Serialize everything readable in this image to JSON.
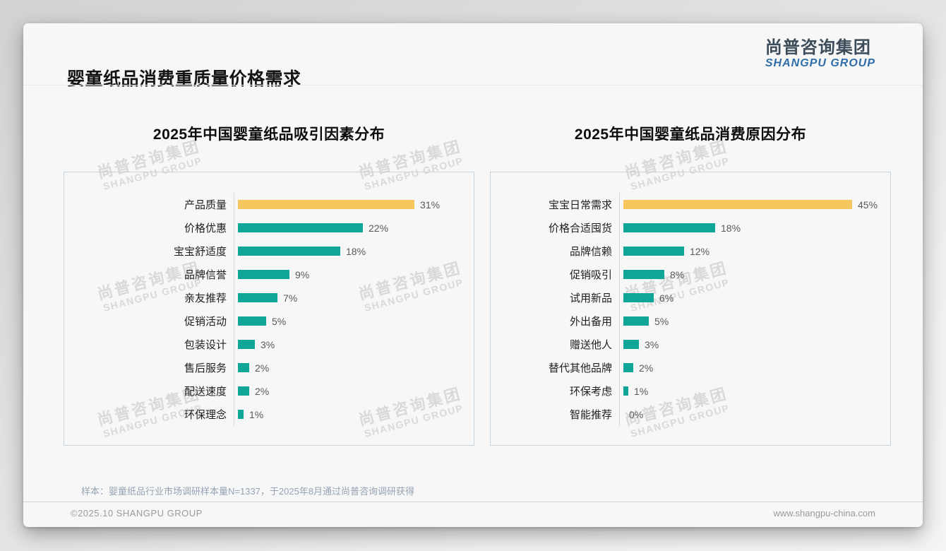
{
  "page": {
    "title": "婴童纸品消费重质量价格需求",
    "note": "样本：婴童纸品行业市场调研样本量N=1337，于2025年8月通过尚普咨询调研获得",
    "footer_left": "©2025.10 SHANGPU GROUP",
    "footer_right": "www.shangpu-china.com"
  },
  "logo": {
    "cn": "尚普咨询集团",
    "en": "SHANGPU GROUP"
  },
  "watermark": {
    "line1": "尚普咨询集团",
    "line2": "SHANGPU GROUP"
  },
  "colors": {
    "highlight_bar": "#F6C75E",
    "default_bar": "#0FA69A",
    "logo_cn": "#3D4C5A",
    "logo_en": "#2F6DA8",
    "panel_border": "#C6D4DF"
  },
  "chart_data": [
    {
      "type": "bar",
      "orientation": "horizontal",
      "title": "2025年中国婴童纸品吸引因素分布",
      "categories": [
        "产品质量",
        "价格优惠",
        "宝宝舒适度",
        "品牌信誉",
        "亲友推荐",
        "促销活动",
        "包装设计",
        "售后服务",
        "配送速度",
        "环保理念"
      ],
      "values": [
        31,
        22,
        18,
        9,
        7,
        5,
        3,
        2,
        2,
        1
      ],
      "value_labels": [
        "31%",
        "22%",
        "18%",
        "9%",
        "7%",
        "5%",
        "3%",
        "2%",
        "2%",
        "1%"
      ],
      "highlight_index": 0,
      "highlight_color": "#F6C75E",
      "bar_color": "#0FA69A",
      "grid": false,
      "legend": false
    },
    {
      "type": "bar",
      "orientation": "horizontal",
      "title": "2025年中国婴童纸品消费原因分布",
      "categories": [
        "宝宝日常需求",
        "价格合适囤货",
        "品牌信赖",
        "促销吸引",
        "试用新品",
        "外出备用",
        "赠送他人",
        "替代其他品牌",
        "环保考虑",
        "智能推荐"
      ],
      "values": [
        45,
        18,
        12,
        8,
        6,
        5,
        3,
        2,
        1,
        0
      ],
      "value_labels": [
        "45%",
        "18%",
        "12%",
        "8%",
        "6%",
        "5%",
        "3%",
        "2%",
        "1%",
        "0%"
      ],
      "highlight_index": 0,
      "highlight_color": "#F6C75E",
      "bar_color": "#0FA69A",
      "grid": false,
      "legend": false
    }
  ]
}
